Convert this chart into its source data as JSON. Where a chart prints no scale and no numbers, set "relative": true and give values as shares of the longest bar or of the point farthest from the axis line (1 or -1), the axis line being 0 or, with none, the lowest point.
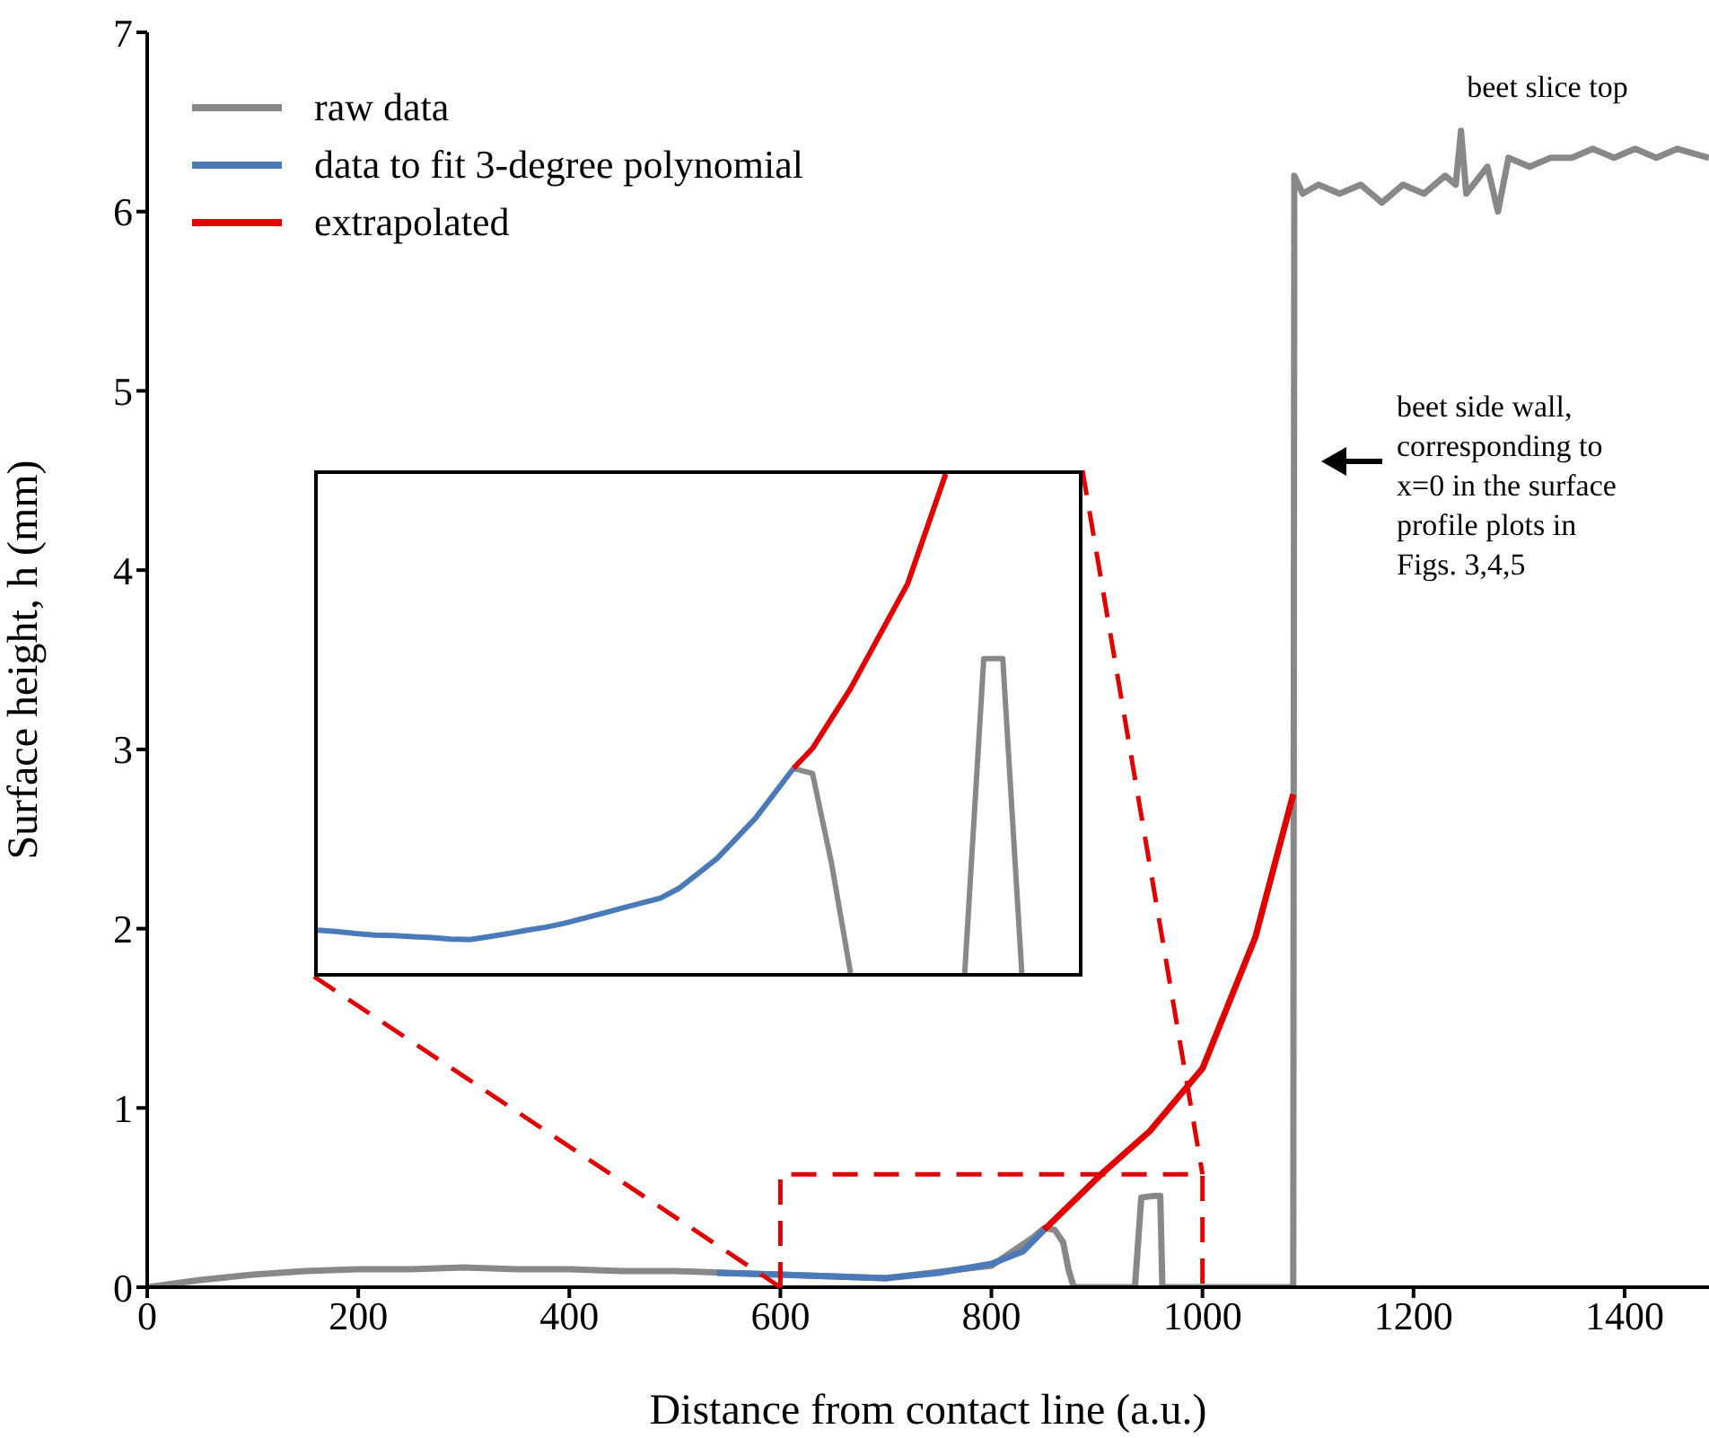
{
  "chart_data": [
    {
      "type": "line",
      "xlabel": "Distance from contact line (a.u.)",
      "ylabel": "Surface height, h (mm)",
      "xlim": [
        0,
        1480
      ],
      "ylim": [
        0,
        7
      ],
      "xticks": [
        0,
        200,
        400,
        600,
        800,
        1000,
        1200,
        1400
      ],
      "yticks": [
        0,
        1,
        2,
        3,
        4,
        5,
        6,
        7
      ],
      "legend": "top left",
      "marker": "none",
      "line_style": "solid",
      "series": [
        {
          "name": "raw data",
          "color": "#888888",
          "x": [
            0,
            50,
            100,
            150,
            200,
            250,
            300,
            350,
            400,
            450,
            500,
            550,
            600,
            700,
            800,
            840,
            850,
            860,
            868,
            873,
            878,
            936,
            942,
            955,
            960,
            962,
            1086,
            1087,
            1095,
            1110,
            1130,
            1150,
            1170,
            1190,
            1210,
            1230,
            1240,
            1245,
            1250,
            1270,
            1280,
            1290,
            1310,
            1330,
            1350,
            1370,
            1390,
            1410,
            1430,
            1450,
            1480
          ],
          "values": [
            0,
            0.04,
            0.07,
            0.09,
            0.1,
            0.1,
            0.11,
            0.1,
            0.1,
            0.09,
            0.09,
            0.08,
            0.07,
            0.05,
            0.12,
            0.28,
            0.33,
            0.32,
            0.25,
            0.1,
            0,
            0,
            0.5,
            0.51,
            0.51,
            0,
            0,
            6.2,
            6.1,
            6.15,
            6.1,
            6.15,
            6.05,
            6.15,
            6.1,
            6.2,
            6.15,
            6.45,
            6.1,
            6.25,
            6.0,
            6.3,
            6.25,
            6.3,
            6.3,
            6.35,
            6.3,
            6.35,
            6.3,
            6.35,
            6.3
          ]
        },
        {
          "name": "data to fit 3-degree polynomial",
          "color": "#4a7ab8",
          "x": [
            540,
            600,
            650,
            700,
            750,
            800,
            830,
            850
          ],
          "values": [
            0.08,
            0.07,
            0.06,
            0.05,
            0.08,
            0.13,
            0.2,
            0.32
          ]
        },
        {
          "name": "extrapolated",
          "color": "#e00000",
          "x": [
            850,
            904,
            950,
            1000,
            1050,
            1086
          ],
          "values": [
            0.32,
            0.63,
            0.87,
            1.22,
            1.95,
            2.75
          ]
        }
      ],
      "annotations": [
        "beet slice top",
        "beet side wall,\ncorresponding to\nx=0 in the surface\nprofile plots in\nFigs. 3,4,5"
      ]
    },
    {
      "type": "line",
      "relative": true,
      "marker": "none",
      "line_style": "solid",
      "categories": [
        null,
        null,
        null,
        null,
        null,
        null,
        null,
        null,
        null,
        null,
        null,
        null,
        null,
        null,
        null,
        null,
        null,
        null,
        null,
        null,
        null,
        null,
        null,
        null,
        null,
        null,
        null,
        null,
        null,
        null,
        null,
        null,
        null,
        null,
        null,
        null,
        null,
        null,
        null,
        null,
        null
      ],
      "series": [
        {
          "color": "#888888",
          "values": [
            null,
            null,
            null,
            null,
            null,
            null,
            null,
            null,
            null,
            null,
            null,
            null,
            null,
            null,
            null,
            null,
            null,
            null,
            null,
            null,
            null,
            null,
            null,
            null,
            null,
            0.41,
            0.4,
            0.22,
            0,
            null,
            null,
            null,
            null,
            null,
            0,
            0.63,
            0.63,
            0,
            null,
            null,
            null
          ]
        },
        {
          "color": "#4a7ab8",
          "values": [
            0.086,
            0.083,
            0.079,
            0.076,
            0.075,
            0.073,
            0.071,
            0.068,
            0.067,
            0.073,
            0.079,
            0.086,
            0.092,
            0.1,
            0.11,
            0.12,
            0.13,
            0.14,
            0.15,
            0.17,
            0.2,
            0.23,
            0.27,
            0.31,
            0.36,
            0.41,
            null,
            null,
            null,
            null,
            null,
            null,
            null,
            null,
            null,
            null,
            null,
            null,
            null,
            null,
            null
          ]
        },
        {
          "color": "#e00000",
          "values": [
            null,
            null,
            null,
            null,
            null,
            null,
            null,
            null,
            null,
            null,
            null,
            null,
            null,
            null,
            null,
            null,
            null,
            null,
            null,
            null,
            null,
            null,
            null,
            null,
            null,
            0.41,
            0.45,
            0.51,
            0.57,
            0.64,
            0.71,
            0.78,
            0.89,
            1.0,
            null,
            null,
            null,
            null,
            null,
            null,
            null
          ]
        }
      ]
    }
  ]
}
